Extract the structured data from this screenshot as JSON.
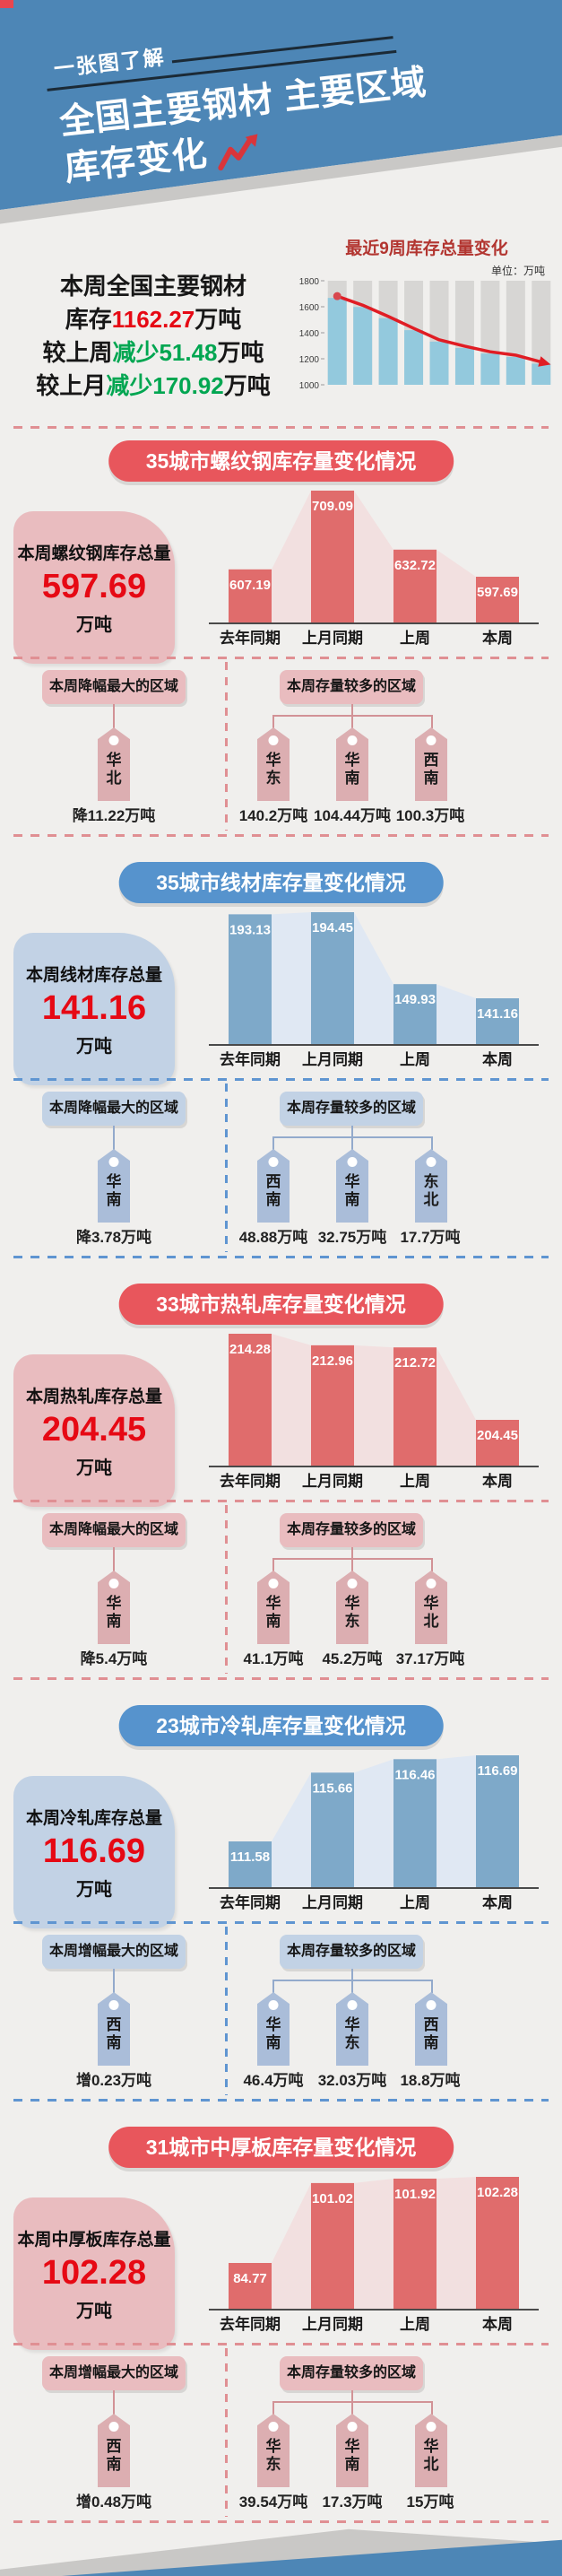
{
  "header": {
    "tagline": "一张图了解",
    "title_line1": "全国主要钢材 主要区域",
    "title_line2": "库存变化",
    "trend_icon": "zigzag-up-arrow"
  },
  "colors": {
    "header_blue": "#4d86b6",
    "accent_red": "#e8565c",
    "accent_blue": "#5693cd",
    "value_red": "#e60914",
    "value_green": "#00a651",
    "trend_line_red": "#e01d24",
    "overview_bar_blue": "#93c9dd"
  },
  "overview": {
    "summary": [
      [
        {
          "t": "本周全国主要钢材",
          "c": "black"
        }
      ],
      [
        {
          "t": "库存",
          "c": "black"
        },
        {
          "t": "1162.27",
          "c": "red"
        },
        {
          "t": "万吨",
          "c": "black"
        }
      ],
      [
        {
          "t": "较上周",
          "c": "black"
        },
        {
          "t": "减少51.48",
          "c": "green"
        },
        {
          "t": "万吨",
          "c": "black"
        }
      ],
      [
        {
          "t": "较上月",
          "c": "black"
        },
        {
          "t": "减少170.92",
          "c": "green"
        },
        {
          "t": "万吨",
          "c": "black"
        }
      ]
    ],
    "chart_title": "最近9周库存总量变化",
    "unit_label": "单位：万吨"
  },
  "sections": [
    {
      "theme": "red",
      "pill": "35城市螺纹钢库存量变化情况",
      "total_label": "本周螺纹钢库存总量",
      "total_value": "597.69",
      "total_unit": "万吨",
      "left_panel": {
        "title": "本周降幅最大的区域",
        "tag": "华北",
        "value": "降11.22万吨"
      },
      "right_panel": {
        "title": "本周存量较多的区域",
        "tags": [
          {
            "tag": "华东",
            "value": "140.2万吨"
          },
          {
            "tag": "华南",
            "value": "104.44万吨"
          },
          {
            "tag": "西南",
            "value": "100.3万吨"
          }
        ]
      }
    },
    {
      "theme": "blue",
      "pill": "35城市线材库存量变化情况",
      "total_label": "本周线材库存总量",
      "total_value": "141.16",
      "total_unit": "万吨",
      "left_panel": {
        "title": "本周降幅最大的区域",
        "tag": "华南",
        "value": "降3.78万吨"
      },
      "right_panel": {
        "title": "本周存量较多的区域",
        "tags": [
          {
            "tag": "西南",
            "value": "48.88万吨"
          },
          {
            "tag": "华南",
            "value": "32.75万吨"
          },
          {
            "tag": "东北",
            "value": "17.7万吨"
          }
        ]
      }
    },
    {
      "theme": "red",
      "pill": "33城市热轧库存量变化情况",
      "total_label": "本周热轧库存总量",
      "total_value": "204.45",
      "total_unit": "万吨",
      "left_panel": {
        "title": "本周降幅最大的区域",
        "tag": "华南",
        "value": "降5.4万吨"
      },
      "right_panel": {
        "title": "本周存量较多的区域",
        "tags": [
          {
            "tag": "华南",
            "value": "41.1万吨"
          },
          {
            "tag": "华东",
            "value": "45.2万吨"
          },
          {
            "tag": "华北",
            "value": "37.17万吨"
          }
        ]
      }
    },
    {
      "theme": "blue",
      "pill": "23城市冷轧库存量变化情况",
      "total_label": "本周冷轧库存总量",
      "total_value": "116.69",
      "total_unit": "万吨",
      "left_panel": {
        "title": "本周增幅最大的区域",
        "tag": "西南",
        "value": "增0.23万吨"
      },
      "right_panel": {
        "title": "本周存量较多的区域",
        "tags": [
          {
            "tag": "华南",
            "value": "46.4万吨"
          },
          {
            "tag": "华东",
            "value": "32.03万吨"
          },
          {
            "tag": "西南",
            "value": "18.8万吨"
          }
        ]
      }
    },
    {
      "theme": "red",
      "pill": "31城市中厚板库存量变化情况",
      "total_label": "本周中厚板库存总量",
      "total_value": "102.28",
      "total_unit": "万吨",
      "left_panel": {
        "title": "本周增幅最大的区域",
        "tag": "西南",
        "value": "增0.48万吨"
      },
      "right_panel": {
        "title": "本周存量较多的区域",
        "tags": [
          {
            "tag": "华东",
            "value": "39.54万吨"
          },
          {
            "tag": "华南",
            "value": "17.3万吨"
          },
          {
            "tag": "华北",
            "value": "15万吨"
          }
        ]
      }
    }
  ],
  "chart_data": [
    {
      "id": "overview-trend",
      "type": "bar-line-combo",
      "title": "最近9周库存总量变化",
      "unit": "万吨",
      "x_labels": [
        "",
        "",
        "",
        "",
        "",
        "",
        "",
        "",
        ""
      ],
      "series": [
        {
          "name": "周库存总量-柱",
          "values": [
            1668,
            1598,
            1512,
            1420,
            1332,
            1283,
            1240,
            1214,
            1162
          ]
        },
        {
          "name": "周库存总量-折线",
          "values": [
            1668,
            1598,
            1512,
            1420,
            1332,
            1283,
            1240,
            1214,
            1162
          ]
        }
      ],
      "ylim": [
        1000,
        1800
      ],
      "yticks": [
        1800,
        1600,
        1400,
        1200,
        1000
      ],
      "grid": false,
      "legend": "none"
    },
    {
      "id": "rebar",
      "type": "bar",
      "title": "35城市螺纹钢库存量变化情况",
      "unit": "万吨",
      "categories": [
        "去年同期",
        "上月同期",
        "上周",
        "本周"
      ],
      "values": [
        607.19,
        709.09,
        632.72,
        597.69
      ],
      "labels": [
        "607.19",
        "709.09",
        "632.72",
        "597.69"
      ]
    },
    {
      "id": "wire-rod",
      "type": "bar",
      "title": "35城市线材库存量变化情况",
      "unit": "万吨",
      "categories": [
        "去年同期",
        "上月同期",
        "上周",
        "本周"
      ],
      "values": [
        193.13,
        194.45,
        149.93,
        141.16
      ],
      "labels": [
        "193.13",
        "194.45",
        "149.93",
        "141.16"
      ]
    },
    {
      "id": "hot-rolled",
      "type": "bar",
      "title": "33城市热轧库存量变化情况",
      "unit": "万吨",
      "categories": [
        "去年同期",
        "上月同期",
        "上周",
        "本周"
      ],
      "values": [
        214.28,
        212.96,
        212.72,
        204.45
      ],
      "labels": [
        "214.28",
        "212.96",
        "212.72",
        "204.45"
      ]
    },
    {
      "id": "cold-rolled",
      "type": "bar",
      "title": "23城市冷轧库存量变化情况",
      "unit": "万吨",
      "categories": [
        "去年同期",
        "上月同期",
        "上周",
        "本周"
      ],
      "values": [
        111.58,
        115.66,
        116.46,
        116.69
      ],
      "labels": [
        "111.58",
        "115.66",
        "116.46",
        "116.69"
      ]
    },
    {
      "id": "medium-plate",
      "type": "bar",
      "title": "31城市中厚板库存量变化情况",
      "unit": "万吨",
      "categories": [
        "去年同期",
        "上月同期",
        "上周",
        "本周"
      ],
      "values": [
        84.77,
        101.02,
        101.92,
        102.28
      ],
      "labels": [
        "84.77",
        "101.02",
        "101.92",
        "102.28"
      ]
    }
  ]
}
